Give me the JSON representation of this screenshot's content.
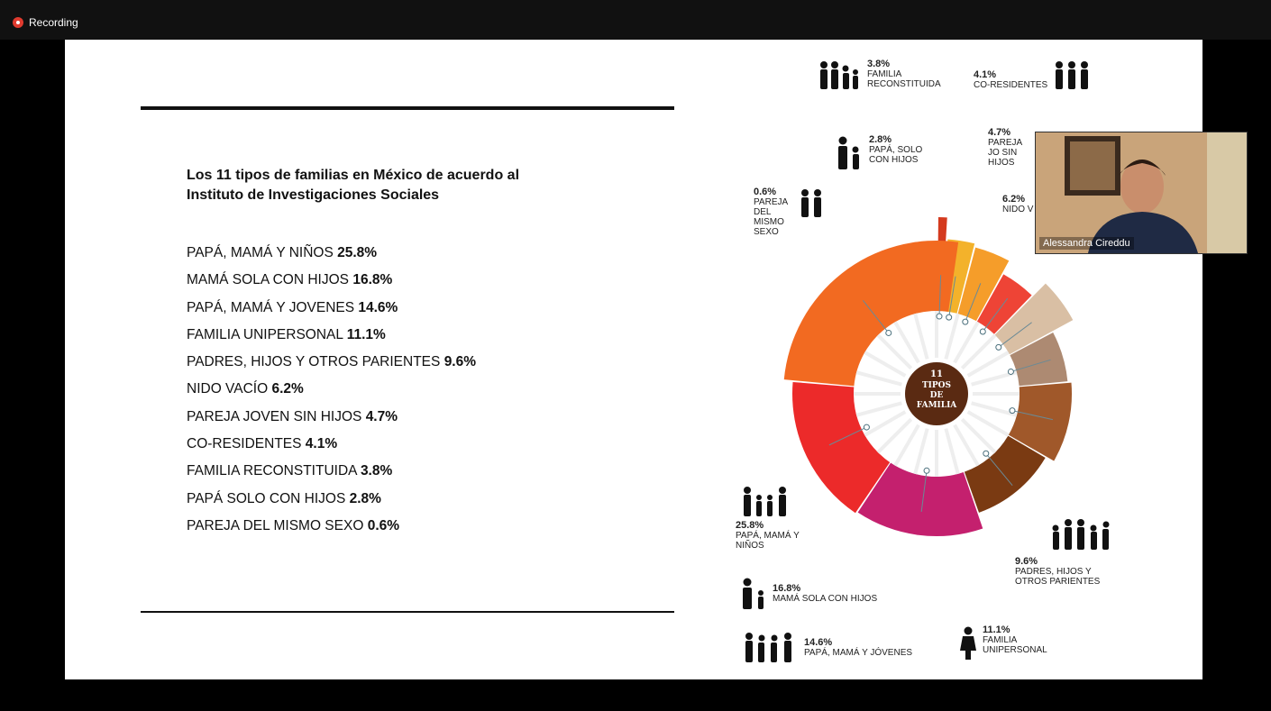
{
  "recording": {
    "label": "Recording"
  },
  "slide": {
    "heading_line1": "Los 11 tipos de familias en México de acuerdo al",
    "heading_line2": "Instituto de Investigaciones Sociales",
    "items": [
      {
        "name": "PAPÁ, MAMÁ Y NIÑOS",
        "value": "25.8%"
      },
      {
        "name": "MAMÁ SOLA CON HIJOS",
        "value": "16.8%"
      },
      {
        "name": "PAPÁ, MAMÁ Y JOVENES",
        "value": "14.6%"
      },
      {
        "name": "FAMILIA UNIPERSONAL",
        "value": "11.1%"
      },
      {
        "name": "PADRES, HIJOS Y OTROS PARIENTES",
        "value": "9.6%"
      },
      {
        "name": "NIDO VACÍO",
        "value": "6.2%"
      },
      {
        "name": "PAREJA JOVEN SIN HIJOS",
        "value": "4.7%"
      },
      {
        "name": "CO-RESIDENTES",
        "value": "4.1%"
      },
      {
        "name": "FAMILIA RECONSTITUIDA",
        "value": "3.8%"
      },
      {
        "name": "PAPÁ SOLO CON HIJOS",
        "value": "2.8%"
      },
      {
        "name": "PAREJA DEL MISMO SEXO",
        "value": "0.6%"
      }
    ]
  },
  "chart_center": {
    "line1": "11",
    "line2": "TIPOS",
    "line3": "DE",
    "line4": "FAMILIA"
  },
  "chart_labels": {
    "reconstituida": {
      "pct": "3.8%",
      "text": "FAMILIA RECONSTITUIDA"
    },
    "coresidentes": {
      "pct": "4.1%",
      "text": "CO-RESIDENTES"
    },
    "papa_solo": {
      "pct": "2.8%",
      "text": "PAPÁ, SOLO CON HIJOS"
    },
    "pareja_joven": {
      "pct": "4.7%",
      "text": "PAREJA JO SIN HIJOS"
    },
    "mismo_sexo": {
      "pct": "0.6%",
      "text": "PAREJA DEL MISMO SEXO"
    },
    "nido": {
      "pct": "6.2%",
      "text": "NIDO V"
    },
    "papa_mama_ninos": {
      "pct": "25.8%",
      "text": "PAPÁ, MAMÁ Y NIÑOS"
    },
    "mama_sola": {
      "pct": "16.8%",
      "text": "MAMÁ SOLA CON HIJOS"
    },
    "jovenes": {
      "pct": "14.6%",
      "text": "PAPÁ, MAMÁ Y JÓVENES"
    },
    "unipersonal": {
      "pct": "11.1%",
      "text": "FAMILIA UNIPERSONAL"
    },
    "otros": {
      "pct": "9.6%",
      "text": "PADRES, HIJOS Y OTROS PARIENTES"
    }
  },
  "chart_data": {
    "type": "pie",
    "title": "11 TIPOS DE FAMILIA",
    "categories": [
      "Papá, mamá y niños",
      "Mamá sola con hijos",
      "Papá, mamá y jóvenes",
      "Familia unipersonal",
      "Padres, hijos y otros parientes",
      "Nido vacío",
      "Pareja joven sin hijos",
      "Co-residentes",
      "Familia reconstituida",
      "Papá solo con hijos",
      "Pareja del mismo sexo"
    ],
    "values": [
      25.8,
      16.8,
      14.6,
      11.1,
      9.6,
      6.2,
      4.7,
      4.1,
      3.8,
      2.8,
      0.6
    ],
    "colors": [
      "#f26a21",
      "#ec2a2a",
      "#c4206e",
      "#7a3a12",
      "#a0582a",
      "#ad8a72",
      "#d9bfa4",
      "#ee4436",
      "#f59d2a",
      "#f3b22b",
      "#d43a1e"
    ]
  },
  "webcam": {
    "name": "Alessandra Cireddu"
  }
}
